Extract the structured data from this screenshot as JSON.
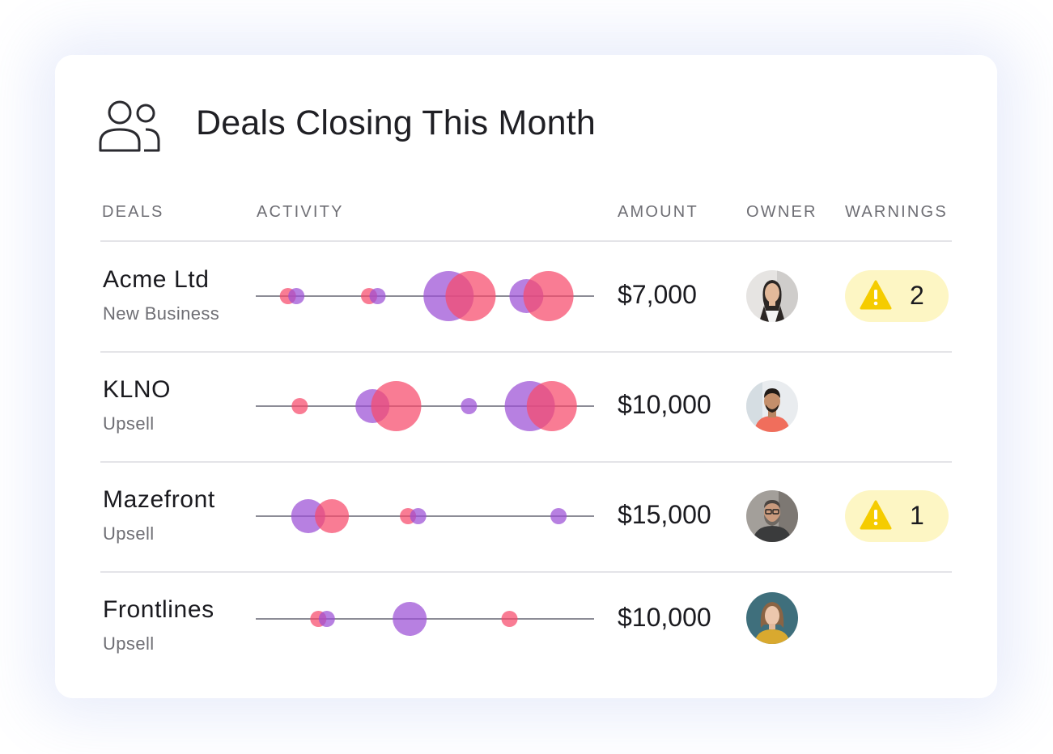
{
  "header": {
    "title": "Deals Closing This Month",
    "icon": "users-icon"
  },
  "columns": {
    "deals": "DEALS",
    "activity": "ACTIVITY",
    "amount": "AMOUNT",
    "owner": "OWNER",
    "warnings": "WARNINGS"
  },
  "colors": {
    "purple": "#9b4fd6",
    "pink": "#f7496b",
    "warning_bg": "#fdf6c4",
    "warning_icon": "#f5cc00"
  },
  "deals": [
    {
      "name": "Acme Ltd",
      "type": "New Business",
      "amount": "$7,000",
      "owner_avatar": "woman-with-glasses-avatar",
      "warnings": "2",
      "activity": [
        {
          "kind": "pink",
          "pos": 0.095,
          "size": "small"
        },
        {
          "kind": "purple",
          "pos": 0.12,
          "size": "small"
        },
        {
          "kind": "pink",
          "pos": 0.335,
          "size": "small"
        },
        {
          "kind": "purple",
          "pos": 0.36,
          "size": "small"
        },
        {
          "kind": "purple",
          "pos": 0.57,
          "size": "large"
        },
        {
          "kind": "pink",
          "pos": 0.635,
          "size": "large"
        },
        {
          "kind": "purple",
          "pos": 0.8,
          "size": "medium"
        },
        {
          "kind": "pink",
          "pos": 0.865,
          "size": "large"
        }
      ]
    },
    {
      "name": "KLNO",
      "type": "Upsell",
      "amount": "$10,000",
      "owner_avatar": "man-orange-shirt-avatar",
      "warnings": "",
      "activity": [
        {
          "kind": "pink",
          "pos": 0.13,
          "size": "small"
        },
        {
          "kind": "purple",
          "pos": 0.345,
          "size": "medium"
        },
        {
          "kind": "pink",
          "pos": 0.415,
          "size": "large"
        },
        {
          "kind": "purple",
          "pos": 0.63,
          "size": "small"
        },
        {
          "kind": "purple",
          "pos": 0.81,
          "size": "large"
        },
        {
          "kind": "pink",
          "pos": 0.875,
          "size": "large"
        }
      ]
    },
    {
      "name": "Mazefront",
      "type": "Upsell",
      "amount": "$15,000",
      "owner_avatar": "man-with-glasses-avatar",
      "warnings": "1",
      "activity": [
        {
          "kind": "purple",
          "pos": 0.155,
          "size": "medium"
        },
        {
          "kind": "pink",
          "pos": 0.225,
          "size": "medium"
        },
        {
          "kind": "pink",
          "pos": 0.45,
          "size": "small"
        },
        {
          "kind": "purple",
          "pos": 0.48,
          "size": "small"
        },
        {
          "kind": "purple",
          "pos": 0.895,
          "size": "small"
        }
      ]
    },
    {
      "name": "Frontlines",
      "type": "Upsell",
      "amount": "$10,000",
      "owner_avatar": "woman-teal-background-avatar",
      "warnings": "",
      "activity": [
        {
          "kind": "pink",
          "pos": 0.185,
          "size": "small"
        },
        {
          "kind": "purple",
          "pos": 0.21,
          "size": "small"
        },
        {
          "kind": "purple",
          "pos": 0.455,
          "size": "medium"
        },
        {
          "kind": "pink",
          "pos": 0.75,
          "size": "small"
        }
      ]
    }
  ]
}
